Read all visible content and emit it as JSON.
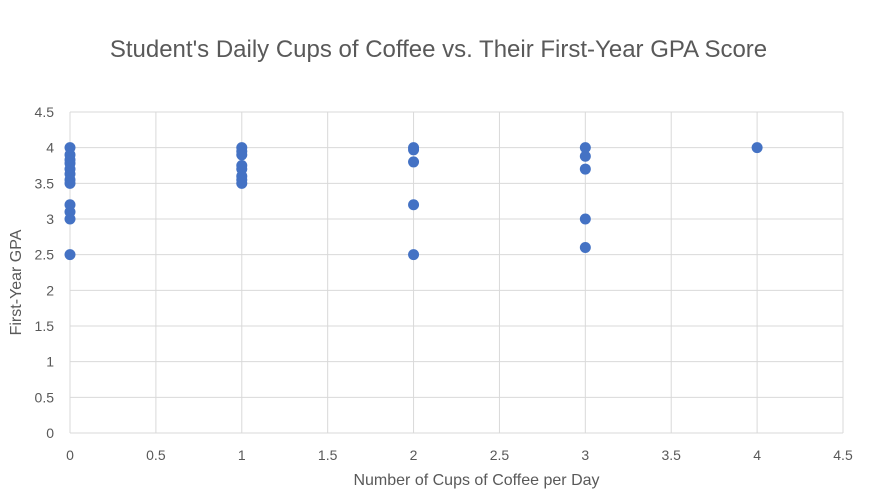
{
  "chart_data": {
    "type": "scatter",
    "title": "Student's Daily Cups of Coffee vs. Their First-Year GPA Score",
    "xlabel": "Number of Cups of Coffee per Day",
    "ylabel": "First-Year GPA",
    "xlim": [
      0,
      4.5
    ],
    "ylim": [
      0,
      4.5
    ],
    "x_ticks": [
      "0",
      "0.5",
      "1",
      "1.5",
      "2",
      "2.5",
      "3",
      "3.5",
      "4",
      "4.5"
    ],
    "y_ticks": [
      "0",
      "0.5",
      "1",
      "1.5",
      "2",
      "2.5",
      "3",
      "3.5",
      "4",
      "4.5"
    ],
    "grid": true,
    "marker_color": "#4472C4",
    "gridline_color": "#d9d9d9",
    "points": [
      {
        "x": 0,
        "y": 4.0
      },
      {
        "x": 0,
        "y": 3.9
      },
      {
        "x": 0,
        "y": 3.83
      },
      {
        "x": 0,
        "y": 3.78
      },
      {
        "x": 0,
        "y": 3.7
      },
      {
        "x": 0,
        "y": 3.63
      },
      {
        "x": 0,
        "y": 3.55
      },
      {
        "x": 0,
        "y": 3.5
      },
      {
        "x": 0,
        "y": 3.2
      },
      {
        "x": 0,
        "y": 3.1
      },
      {
        "x": 0,
        "y": 3.0
      },
      {
        "x": 0,
        "y": 2.5
      },
      {
        "x": 1,
        "y": 4.0
      },
      {
        "x": 1,
        "y": 3.95
      },
      {
        "x": 1,
        "y": 3.9
      },
      {
        "x": 1,
        "y": 3.75
      },
      {
        "x": 1,
        "y": 3.7
      },
      {
        "x": 1,
        "y": 3.6
      },
      {
        "x": 1,
        "y": 3.55
      },
      {
        "x": 1,
        "y": 3.5
      },
      {
        "x": 2,
        "y": 4.0
      },
      {
        "x": 2,
        "y": 3.97
      },
      {
        "x": 2,
        "y": 3.8
      },
      {
        "x": 2,
        "y": 3.2
      },
      {
        "x": 2,
        "y": 2.5
      },
      {
        "x": 3,
        "y": 4.0
      },
      {
        "x": 3,
        "y": 3.88
      },
      {
        "x": 3,
        "y": 3.7
      },
      {
        "x": 3,
        "y": 3.0
      },
      {
        "x": 3,
        "y": 2.6
      },
      {
        "x": 4,
        "y": 4.0
      }
    ]
  }
}
